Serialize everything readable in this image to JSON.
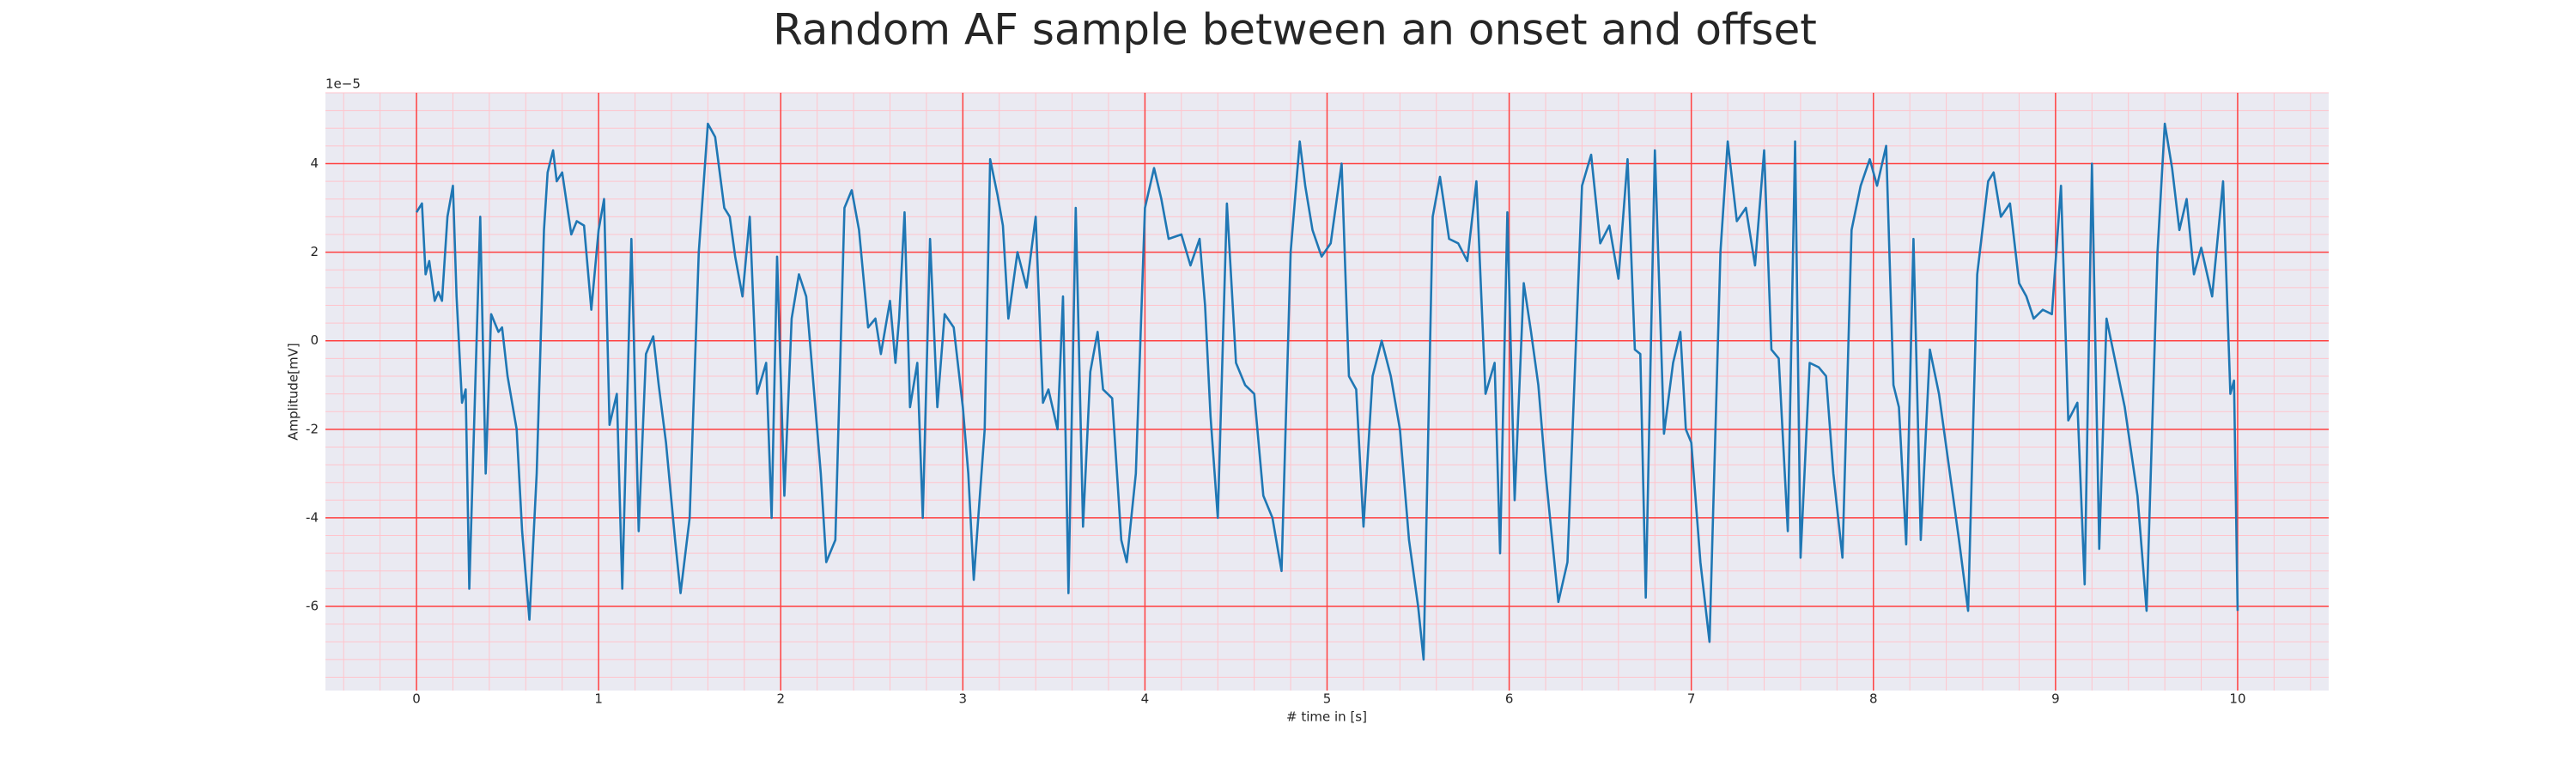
{
  "chart_data": {
    "type": "line",
    "title": "Random AF sample between an onset and offset",
    "x_label": "# time in [s]",
    "y_label": "Amplitude[mV]",
    "y_offset_label": "1e−5",
    "xlim": [
      -0.5,
      10.5
    ],
    "ylim": [
      -7.9,
      5.6
    ],
    "xticks": [
      0,
      1,
      2,
      3,
      4,
      5,
      6,
      7,
      8,
      9,
      10
    ],
    "yticks": [
      -6,
      -4,
      -2,
      0,
      2,
      4
    ],
    "grid": true,
    "minor_grid": true,
    "grid_color": "#ff4040",
    "minor_grid_color": "#ffc4cc",
    "background": "#eaeaf2",
    "series": [
      {
        "color": "#1f77b4",
        "x": [
          0,
          0.03,
          0.05,
          0.07,
          0.1,
          0.12,
          0.14,
          0.17,
          0.2,
          0.22,
          0.25,
          0.27,
          0.29,
          0.35,
          0.38,
          0.41,
          0.45,
          0.47,
          0.5,
          0.55,
          0.58,
          0.62,
          0.66,
          0.7,
          0.72,
          0.75,
          0.77,
          0.8,
          0.85,
          0.88,
          0.92,
          0.96,
          1.0,
          1.03,
          1.06,
          1.1,
          1.13,
          1.18,
          1.22,
          1.26,
          1.3,
          1.33,
          1.37,
          1.42,
          1.45,
          1.5,
          1.55,
          1.6,
          1.64,
          1.69,
          1.72,
          1.75,
          1.79,
          1.83,
          1.87,
          1.92,
          1.95,
          1.98,
          2.02,
          2.06,
          2.1,
          2.14,
          2.18,
          2.22,
          2.25,
          2.3,
          2.35,
          2.39,
          2.43,
          2.48,
          2.52,
          2.55,
          2.6,
          2.63,
          2.65,
          2.68,
          2.71,
          2.75,
          2.78,
          2.82,
          2.86,
          2.9,
          2.95,
          3.0,
          3.03,
          3.06,
          3.12,
          3.15,
          3.19,
          3.22,
          3.25,
          3.3,
          3.35,
          3.4,
          3.44,
          3.47,
          3.52,
          3.55,
          3.58,
          3.62,
          3.66,
          3.7,
          3.74,
          3.77,
          3.82,
          3.87,
          3.9,
          3.95,
          4.0,
          4.05,
          4.09,
          4.13,
          4.2,
          4.25,
          4.3,
          4.33,
          4.36,
          4.4,
          4.45,
          4.5,
          4.55,
          4.6,
          4.65,
          4.7,
          4.75,
          4.8,
          4.85,
          4.88,
          4.92,
          4.97,
          5.02,
          5.08,
          5.12,
          5.16,
          5.2,
          5.25,
          5.3,
          5.35,
          5.4,
          5.45,
          5.5,
          5.53,
          5.58,
          5.62,
          5.67,
          5.72,
          5.77,
          5.82,
          5.87,
          5.92,
          5.95,
          5.99,
          6.03,
          6.08,
          6.12,
          6.16,
          6.2,
          6.27,
          6.32,
          6.4,
          6.45,
          6.5,
          6.55,
          6.6,
          6.65,
          6.69,
          6.72,
          6.75,
          6.8,
          6.85,
          6.9,
          6.94,
          6.97,
          7.0,
          7.05,
          7.1,
          7.16,
          7.2,
          7.25,
          7.3,
          7.35,
          7.4,
          7.44,
          7.48,
          7.53,
          7.57,
          7.6,
          7.65,
          7.7,
          7.74,
          7.78,
          7.83,
          7.88,
          7.93,
          7.98,
          8.02,
          8.07,
          8.11,
          8.14,
          8.18,
          8.22,
          8.26,
          8.31,
          8.36,
          8.42,
          8.47,
          8.52,
          8.57,
          8.63,
          8.66,
          8.7,
          8.75,
          8.8,
          8.84,
          8.88,
          8.93,
          8.98,
          9.03,
          9.07,
          9.12,
          9.16,
          9.2,
          9.24,
          9.28,
          9.33,
          9.38,
          9.45,
          9.5,
          9.56,
          9.6,
          9.64,
          9.68,
          9.72,
          9.76,
          9.8,
          9.86,
          9.92,
          9.96,
          9.98,
          10.0
        ],
        "values": [
          2.9,
          3.1,
          1.5,
          1.8,
          0.9,
          1.1,
          0.9,
          2.8,
          3.5,
          1.0,
          -1.4,
          -1.1,
          -5.6,
          2.8,
          -3.0,
          0.6,
          0.2,
          0.3,
          -0.8,
          -2,
          -4.3,
          -6.3,
          -3,
          2.5,
          3.8,
          4.3,
          3.6,
          3.8,
          2.4,
          2.7,
          2.6,
          0.7,
          2.5,
          3.2,
          -1.9,
          -1.2,
          -5.6,
          2.3,
          -4.3,
          -0.3,
          0.1,
          -1.0,
          -2.3,
          -4.5,
          -5.7,
          -4,
          2.0,
          4.9,
          4.6,
          3.0,
          2.8,
          1.9,
          1.0,
          2.8,
          -1.2,
          -0.5,
          -4.0,
          1.9,
          -3.5,
          0.5,
          1.5,
          1.0,
          -1.0,
          -3,
          -5.0,
          -4.5,
          3.0,
          3.4,
          2.5,
          0.3,
          0.5,
          -0.3,
          0.9,
          -0.5,
          0.5,
          2.9,
          -1.5,
          -0.5,
          -4.0,
          2.3,
          -1.5,
          0.6,
          0.3,
          -1.5,
          -3,
          -5.4,
          -2,
          4.1,
          3.3,
          2.6,
          0.5,
          2.0,
          1.2,
          2.8,
          -1.4,
          -1.1,
          -2.0,
          1.0,
          -5.7,
          3.0,
          -4.2,
          -0.7,
          0.2,
          -1.1,
          -1.3,
          -4.5,
          -5.0,
          -3,
          3.0,
          3.9,
          3.2,
          2.3,
          2.4,
          1.7,
          2.3,
          0.8,
          -1.7,
          -4.0,
          3.1,
          -0.5,
          -1.0,
          -1.2,
          -3.5,
          -4.0,
          -5.2,
          2.0,
          4.5,
          3.5,
          2.5,
          1.9,
          2.2,
          4.0,
          -0.8,
          -1.1,
          -4.2,
          -0.8,
          0.0,
          -0.8,
          -2.0,
          -4.5,
          -6.0,
          -7.2,
          2.8,
          3.7,
          2.3,
          2.2,
          1.8,
          3.6,
          -1.2,
          -0.5,
          -4.8,
          2.9,
          -3.6,
          1.3,
          0.2,
          -1,
          -3,
          -5.9,
          -5.0,
          3.5,
          4.2,
          2.2,
          2.6,
          1.4,
          4.1,
          -0.2,
          -0.3,
          -5.8,
          4.3,
          -2.1,
          -0.5,
          0.2,
          -2.0,
          -2.3,
          -5.0,
          -6.8,
          2.0,
          4.5,
          2.7,
          3.0,
          1.7,
          4.3,
          -0.2,
          -0.4,
          -4.3,
          4.5,
          -4.9,
          -0.5,
          -0.6,
          -0.8,
          -3,
          -4.9,
          2.5,
          3.5,
          4.1,
          3.5,
          4.4,
          -1.0,
          -1.5,
          -4.6,
          2.3,
          -4.5,
          -0.2,
          -1.2,
          -3,
          -4.5,
          -6.1,
          1.5,
          3.6,
          3.8,
          2.8,
          3.1,
          1.3,
          1.0,
          0.5,
          0.7,
          0.6,
          3.5,
          -1.8,
          -1.4,
          -5.5,
          4.0,
          -4.7,
          0.5,
          -0.5,
          -1.5,
          -3.5,
          -6.1,
          2,
          4.9,
          3.9,
          2.5,
          3.2,
          1.5,
          2.1,
          1.0,
          3.6,
          -1.2,
          -0.9,
          -6.1
        ]
      }
    ]
  }
}
